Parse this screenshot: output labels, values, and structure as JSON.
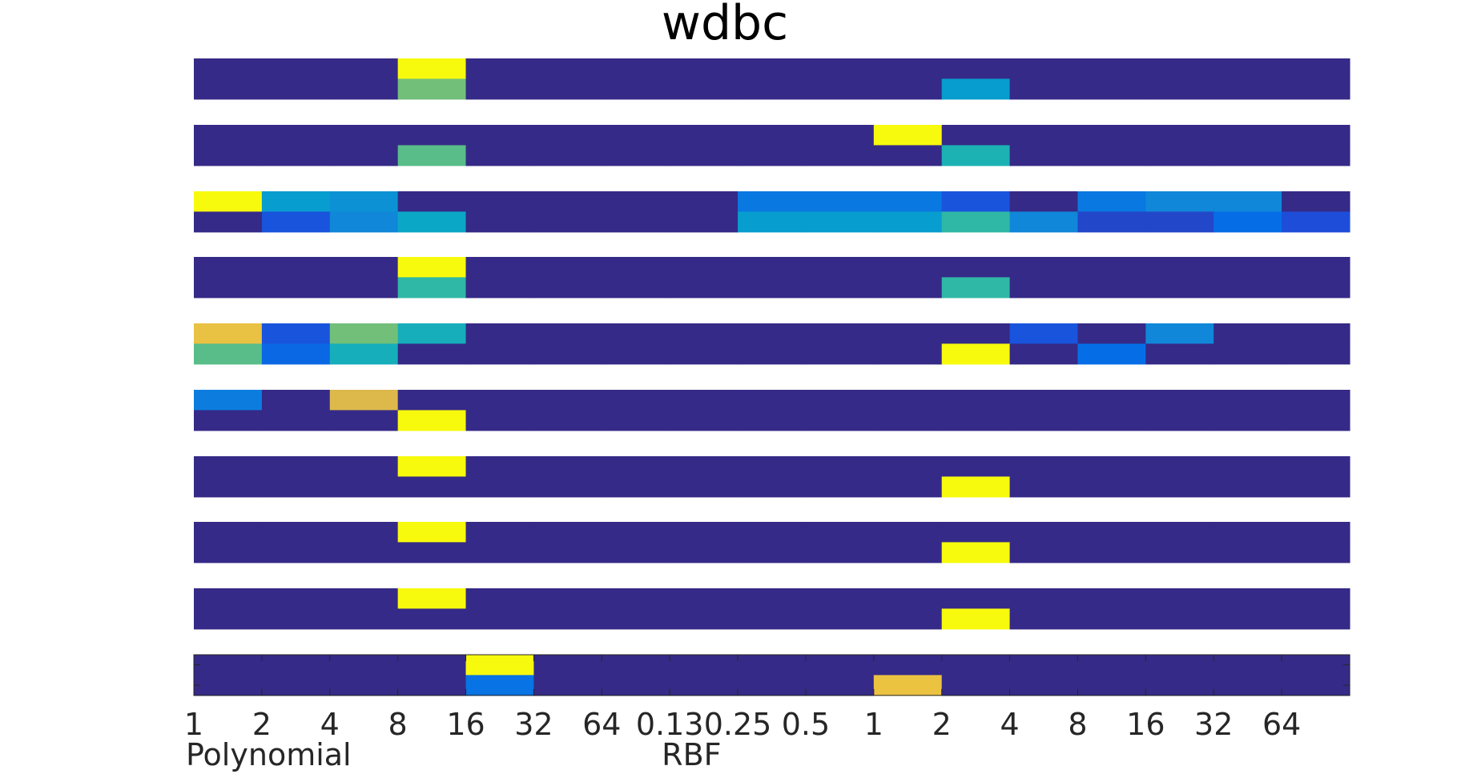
{
  "chart_data": {
    "type": "heatmap",
    "title": "wdbc",
    "xlabel": "",
    "ylabel": "",
    "tick_labels": [
      "1",
      "2",
      "4",
      "8",
      "16",
      "32",
      "64",
      "0.13",
      "0.25",
      "0.5",
      "1",
      "2",
      "4",
      "8",
      "16",
      "32",
      "64"
    ],
    "group_labels": [
      {
        "label": "Polynomial",
        "start_column": 0
      },
      {
        "label": "RBF",
        "start_column": 7
      }
    ],
    "colormap": "parula",
    "color_range": [
      0,
      1
    ],
    "rows_per_panel": 2,
    "panels": [
      {
        "rows": [
          [
            0,
            0,
            0,
            1,
            0,
            0,
            0,
            0,
            0,
            0,
            0,
            0,
            0,
            0,
            0,
            0,
            0
          ],
          [
            0,
            0,
            0,
            0.62,
            0,
            0,
            0,
            0,
            0,
            0,
            0,
            0.38,
            0,
            0,
            0,
            0,
            0
          ]
        ]
      },
      {
        "rows": [
          [
            0,
            0,
            0,
            0,
            0,
            0,
            0,
            0,
            0,
            0,
            1,
            0,
            0,
            0,
            0,
            0,
            0
          ],
          [
            0,
            0,
            0,
            0.58,
            0,
            0,
            0,
            0,
            0,
            0,
            0,
            0.48,
            0,
            0,
            0,
            0,
            0
          ]
        ]
      },
      {
        "rows": [
          [
            1,
            0.38,
            0.34,
            0,
            0,
            0,
            0,
            0,
            0.24,
            0.24,
            0.24,
            0.12,
            0,
            0.24,
            0.3,
            0.3,
            0
          ],
          [
            0,
            0.12,
            0.3,
            0.42,
            0,
            0,
            0,
            0,
            0.38,
            0.38,
            0.38,
            0.52,
            0.3,
            0.08,
            0.08,
            0.2,
            0.1
          ]
        ]
      },
      {
        "rows": [
          [
            0,
            0,
            0,
            1,
            0,
            0,
            0,
            0,
            0,
            0,
            0,
            0,
            0,
            0,
            0,
            0,
            0
          ],
          [
            0,
            0,
            0,
            0.52,
            0,
            0,
            0,
            0,
            0,
            0,
            0,
            0.52,
            0,
            0,
            0,
            0,
            0
          ]
        ]
      },
      {
        "rows": [
          [
            0.84,
            0.12,
            0.62,
            0.46,
            0,
            0,
            0,
            0,
            0,
            0,
            0,
            0,
            0.12,
            0,
            0.3,
            0,
            0
          ],
          [
            0.58,
            0.18,
            0.46,
            0,
            0,
            0,
            0,
            0,
            0,
            0,
            0,
            1,
            0,
            0.2,
            0,
            0,
            0
          ]
        ]
      },
      {
        "rows": [
          [
            0.26,
            0,
            0.8,
            0,
            0,
            0,
            0,
            0,
            0,
            0,
            0,
            0,
            0,
            0,
            0,
            0,
            0
          ],
          [
            0,
            0,
            0,
            1,
            0,
            0,
            0,
            0,
            0,
            0,
            0,
            0,
            0,
            0,
            0,
            0,
            0
          ]
        ]
      },
      {
        "rows": [
          [
            0,
            0,
            0,
            1,
            0,
            0,
            0,
            0,
            0,
            0,
            0,
            0,
            0,
            0,
            0,
            0,
            0
          ],
          [
            0,
            0,
            0,
            0,
            0,
            0,
            0,
            0,
            0,
            0,
            0,
            1,
            0,
            0,
            0,
            0,
            0
          ]
        ]
      },
      {
        "rows": [
          [
            0,
            0,
            0,
            1,
            0,
            0,
            0,
            0,
            0,
            0,
            0,
            0,
            0,
            0,
            0,
            0,
            0
          ],
          [
            0,
            0,
            0,
            0,
            0,
            0,
            0,
            0,
            0,
            0,
            0,
            1,
            0,
            0,
            0,
            0,
            0
          ]
        ]
      },
      {
        "rows": [
          [
            0,
            0,
            0,
            1,
            0,
            0,
            0,
            0,
            0,
            0,
            0,
            0,
            0,
            0,
            0,
            0,
            0
          ],
          [
            0,
            0,
            0,
            0,
            0,
            0,
            0,
            0,
            0,
            0,
            0,
            1,
            0,
            0,
            0,
            0,
            0
          ]
        ]
      },
      {
        "rows": [
          [
            0,
            0,
            0,
            0,
            1,
            0,
            0,
            0,
            0,
            0,
            0,
            0,
            0,
            0,
            0,
            0,
            0
          ],
          [
            0,
            0,
            0,
            0,
            0.22,
            0,
            0,
            0,
            0,
            0,
            0.85,
            0,
            0,
            0,
            0,
            0,
            0
          ]
        ]
      }
    ],
    "grid": false,
    "legend": "none"
  }
}
